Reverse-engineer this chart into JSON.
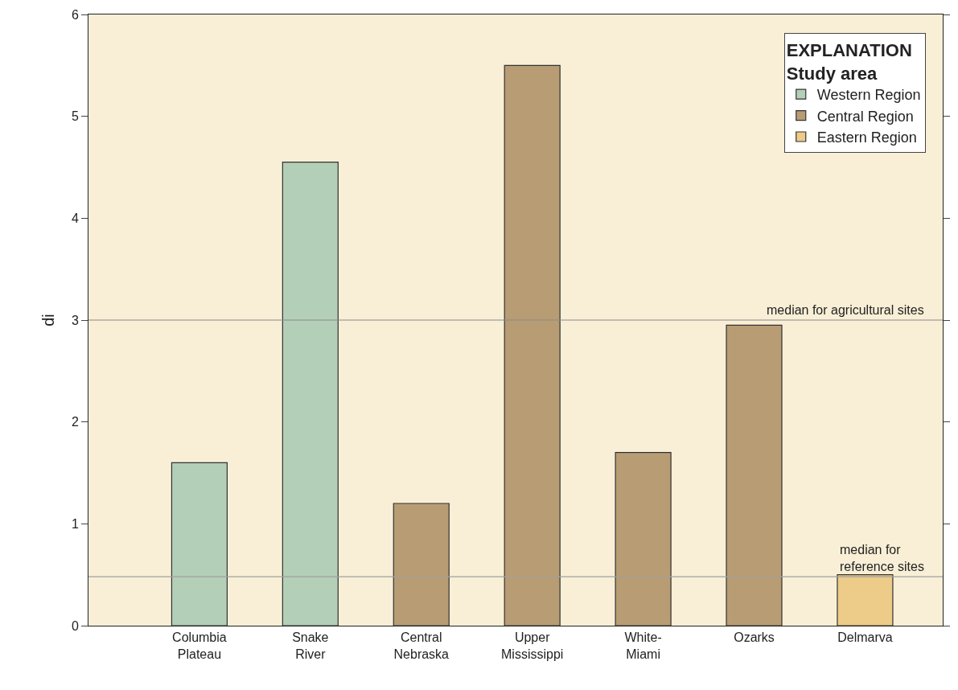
{
  "chart_data": {
    "type": "bar",
    "ylabel": "di",
    "legend_title": "EXPLANATION\nStudy area",
    "categories": [
      "Columbia\nPlateau",
      "Snake\nRiver",
      "Central\nNebraska",
      "Upper\nMississippi",
      "White-\nMiami",
      "Ozarks",
      "Delmarva"
    ],
    "series": [
      {
        "name": "Western Region",
        "color": "#b3cfb8",
        "values": [
          1.6,
          4.55,
          null,
          null,
          null,
          null,
          null
        ]
      },
      {
        "name": "Central Region",
        "color": "#b89c74",
        "values": [
          null,
          null,
          1.2,
          5.5,
          1.7,
          2.95,
          null
        ]
      },
      {
        "name": "Eastern Region",
        "color": "#edcb88",
        "values": [
          null,
          null,
          null,
          null,
          null,
          null,
          0.5
        ]
      }
    ],
    "ylim": [
      0,
      6
    ],
    "yticks": [
      0,
      1,
      2,
      3,
      4,
      5,
      6
    ],
    "grid": false,
    "legend": "top right",
    "tick_labels": "xy",
    "ref_lines": [
      {
        "axis": "y",
        "value": 3,
        "label": "median for agricultural sites",
        "color": "#8a8a8a"
      },
      {
        "axis": "y",
        "value": 0.48,
        "label": "median for\nreference sites",
        "color": "#a0a0a0"
      }
    ]
  }
}
